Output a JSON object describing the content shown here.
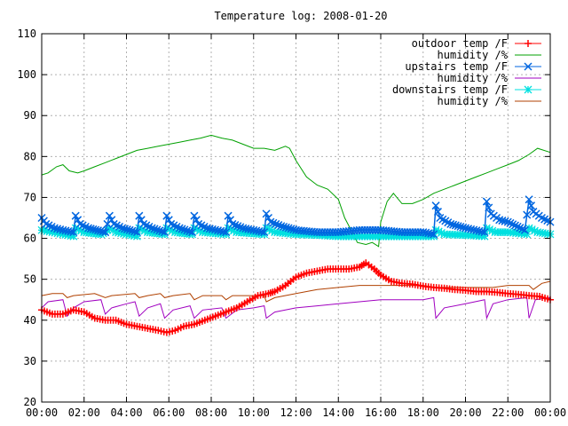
{
  "chart_data": {
    "type": "line",
    "title": "Temperature log: 2008-01-20",
    "xlabel": "",
    "ylabel": "",
    "xlim": [
      0,
      24
    ],
    "ylim": [
      20,
      110
    ],
    "x_ticks": [
      "00:00",
      "02:00",
      "04:00",
      "06:00",
      "08:00",
      "10:00",
      "12:00",
      "14:00",
      "16:00",
      "18:00",
      "20:00",
      "22:00",
      "00:00"
    ],
    "y_ticks": [
      20,
      30,
      40,
      50,
      60,
      70,
      80,
      90,
      100,
      110
    ],
    "grid": true,
    "legend_position": "top-right",
    "series": [
      {
        "name": "outdoor temp /F",
        "color": "#ff0000",
        "marker": "plus",
        "points": [
          [
            0,
            42.5
          ],
          [
            0.5,
            41.5
          ],
          [
            1,
            41.5
          ],
          [
            1.5,
            42.5
          ],
          [
            2,
            42
          ],
          [
            2.5,
            40.5
          ],
          [
            3,
            40
          ],
          [
            3.5,
            40
          ],
          [
            4,
            39
          ],
          [
            4.5,
            38.5
          ],
          [
            5,
            38
          ],
          [
            5.5,
            37.5
          ],
          [
            5.9,
            37
          ],
          [
            6.3,
            37.5
          ],
          [
            6.7,
            38.5
          ],
          [
            7.2,
            39
          ],
          [
            7.7,
            40
          ],
          [
            8.2,
            41
          ],
          [
            8.7,
            42
          ],
          [
            9.2,
            43
          ],
          [
            9.7,
            44.5
          ],
          [
            10.2,
            46
          ],
          [
            10.7,
            46.5
          ],
          [
            11,
            47
          ],
          [
            11.5,
            48.5
          ],
          [
            12,
            50.5
          ],
          [
            12.5,
            51.5
          ],
          [
            13,
            52
          ],
          [
            13.5,
            52.5
          ],
          [
            14,
            52.5
          ],
          [
            14.5,
            52.5
          ],
          [
            15,
            53
          ],
          [
            15.3,
            54
          ],
          [
            15.7,
            52.5
          ],
          [
            16,
            51
          ],
          [
            16.5,
            49.5
          ],
          [
            17,
            49
          ],
          [
            17.5,
            48.8
          ],
          [
            18,
            48.3
          ],
          [
            18.5,
            48
          ],
          [
            19,
            47.8
          ],
          [
            19.5,
            47.5
          ],
          [
            20,
            47.3
          ],
          [
            20.5,
            47
          ],
          [
            21,
            47
          ],
          [
            21.5,
            46.8
          ],
          [
            22,
            46.5
          ],
          [
            22.5,
            46.3
          ],
          [
            23,
            46
          ],
          [
            23.5,
            45.8
          ],
          [
            24,
            45
          ]
        ]
      },
      {
        "name": "humidity /%",
        "color": "#00a000",
        "marker": "none",
        "points": [
          [
            0,
            75.5
          ],
          [
            0.3,
            76
          ],
          [
            0.7,
            77.5
          ],
          [
            1,
            78
          ],
          [
            1.3,
            76.5
          ],
          [
            1.7,
            76
          ],
          [
            2,
            76.5
          ],
          [
            2.5,
            77.5
          ],
          [
            3,
            78.5
          ],
          [
            3.5,
            79.5
          ],
          [
            4,
            80.5
          ],
          [
            4.5,
            81.5
          ],
          [
            5,
            82
          ],
          [
            5.5,
            82.5
          ],
          [
            6,
            83
          ],
          [
            6.5,
            83.5
          ],
          [
            7,
            84
          ],
          [
            7.5,
            84.5
          ],
          [
            8,
            85.2
          ],
          [
            8.5,
            84.5
          ],
          [
            9,
            84
          ],
          [
            9.5,
            83
          ],
          [
            10,
            82
          ],
          [
            10.5,
            82
          ],
          [
            11,
            81.5
          ],
          [
            11.5,
            82.5
          ],
          [
            11.7,
            82
          ],
          [
            12,
            79
          ],
          [
            12.5,
            75
          ],
          [
            13,
            73
          ],
          [
            13.5,
            72
          ],
          [
            14,
            69.5
          ],
          [
            14.3,
            65
          ],
          [
            14.6,
            62
          ],
          [
            14.9,
            59
          ],
          [
            15.3,
            58.5
          ],
          [
            15.6,
            59
          ],
          [
            15.9,
            58
          ],
          [
            16,
            64
          ],
          [
            16.3,
            69
          ],
          [
            16.6,
            71
          ],
          [
            17,
            68.5
          ],
          [
            17.5,
            68.5
          ],
          [
            18,
            69.5
          ],
          [
            18.5,
            71
          ],
          [
            19,
            72
          ],
          [
            19.5,
            73
          ],
          [
            20,
            74
          ],
          [
            20.5,
            75
          ],
          [
            21,
            76
          ],
          [
            21.5,
            77
          ],
          [
            22,
            78
          ],
          [
            22.5,
            79
          ],
          [
            23,
            80.5
          ],
          [
            23.4,
            82
          ],
          [
            24,
            81
          ]
        ]
      },
      {
        "name": "upstairs temp /F",
        "color": "#0066e0",
        "marker": "cross",
        "points": [
          [
            0,
            65
          ],
          [
            0.2,
            63.5
          ],
          [
            0.6,
            62.5
          ],
          [
            1,
            62
          ],
          [
            1.5,
            61.5
          ],
          [
            1.6,
            65.5
          ],
          [
            1.8,
            63.5
          ],
          [
            2.2,
            62.5
          ],
          [
            3,
            61.5
          ],
          [
            3.2,
            65.5
          ],
          [
            3.4,
            63.5
          ],
          [
            3.8,
            62.5
          ],
          [
            4.5,
            61.5
          ],
          [
            4.6,
            65.5
          ],
          [
            4.8,
            63.5
          ],
          [
            5.2,
            62.5
          ],
          [
            5.8,
            61.5
          ],
          [
            5.9,
            65.5
          ],
          [
            6.1,
            63.5
          ],
          [
            6.5,
            62.5
          ],
          [
            7.1,
            61.5
          ],
          [
            7.2,
            65.5
          ],
          [
            7.4,
            63.5
          ],
          [
            7.8,
            62.5
          ],
          [
            8.7,
            61.5
          ],
          [
            8.8,
            65.5
          ],
          [
            9,
            63.5
          ],
          [
            9.5,
            62.5
          ],
          [
            10.5,
            61.5
          ],
          [
            10.6,
            66
          ],
          [
            10.8,
            64
          ],
          [
            11.3,
            63
          ],
          [
            12,
            62
          ],
          [
            13,
            61.5
          ],
          [
            14,
            61.5
          ],
          [
            15,
            62
          ],
          [
            16,
            62
          ],
          [
            17,
            61.5
          ],
          [
            18,
            61.5
          ],
          [
            18.5,
            61
          ],
          [
            18.6,
            68
          ],
          [
            18.8,
            65
          ],
          [
            19.3,
            63.5
          ],
          [
            20,
            62.5
          ],
          [
            20.9,
            61.5
          ],
          [
            21,
            69
          ],
          [
            21.2,
            66
          ],
          [
            21.6,
            64.5
          ],
          [
            22,
            64
          ],
          [
            22.8,
            62
          ],
          [
            23,
            69.5
          ],
          [
            23.2,
            66.5
          ],
          [
            23.6,
            65
          ],
          [
            24,
            64
          ]
        ]
      },
      {
        "name": "humidity /%",
        "color": "#a000c0",
        "marker": "none",
        "points": [
          [
            0,
            43
          ],
          [
            0.3,
            44.5
          ],
          [
            1,
            45
          ],
          [
            1.2,
            41
          ],
          [
            1.5,
            43
          ],
          [
            2,
            44.5
          ],
          [
            2.8,
            45
          ],
          [
            3,
            41.5
          ],
          [
            3.3,
            43
          ],
          [
            4,
            44
          ],
          [
            4.4,
            44.5
          ],
          [
            4.6,
            41
          ],
          [
            5,
            43
          ],
          [
            5.6,
            44
          ],
          [
            5.8,
            40.5
          ],
          [
            6.2,
            42.5
          ],
          [
            7,
            43.5
          ],
          [
            7.2,
            40.5
          ],
          [
            7.6,
            42.5
          ],
          [
            8.5,
            43
          ],
          [
            8.7,
            40.5
          ],
          [
            9.2,
            42.5
          ],
          [
            10,
            43
          ],
          [
            10.5,
            43.5
          ],
          [
            10.6,
            40.5
          ],
          [
            11,
            42
          ],
          [
            12,
            43
          ],
          [
            13,
            43.5
          ],
          [
            14,
            44
          ],
          [
            15,
            44.5
          ],
          [
            16,
            45
          ],
          [
            17,
            45
          ],
          [
            18,
            45
          ],
          [
            18.5,
            45.5
          ],
          [
            18.6,
            40.5
          ],
          [
            19,
            43
          ],
          [
            20,
            44
          ],
          [
            20.9,
            45
          ],
          [
            21,
            40.5
          ],
          [
            21.3,
            44
          ],
          [
            22,
            45
          ],
          [
            22.9,
            45.5
          ],
          [
            23,
            40.5
          ],
          [
            23.3,
            45
          ],
          [
            24,
            45.5
          ]
        ]
      },
      {
        "name": "downstairs temp /F",
        "color": "#00e0e0",
        "marker": "star",
        "points": [
          [
            0,
            62
          ],
          [
            0.5,
            61.5
          ],
          [
            1,
            61
          ],
          [
            1.5,
            60.5
          ],
          [
            1.6,
            62.5
          ],
          [
            2,
            61.5
          ],
          [
            2.8,
            61
          ],
          [
            3,
            61.5
          ],
          [
            3.2,
            62.5
          ],
          [
            3.5,
            61.5
          ],
          [
            4.5,
            60.5
          ],
          [
            4.6,
            62.5
          ],
          [
            5,
            61.5
          ],
          [
            5.8,
            61
          ],
          [
            5.9,
            62.5
          ],
          [
            6.3,
            61.5
          ],
          [
            7.1,
            61
          ],
          [
            7.2,
            62.5
          ],
          [
            7.6,
            61.5
          ],
          [
            8.7,
            61
          ],
          [
            8.8,
            62.5
          ],
          [
            9.2,
            61.5
          ],
          [
            10.5,
            61
          ],
          [
            10.6,
            62.5
          ],
          [
            11,
            61.5
          ],
          [
            12,
            61
          ],
          [
            13,
            60.8
          ],
          [
            14,
            60.5
          ],
          [
            15,
            60.5
          ],
          [
            16,
            60.5
          ],
          [
            17,
            60.5
          ],
          [
            18,
            60.5
          ],
          [
            18.5,
            60.5
          ],
          [
            18.6,
            62
          ],
          [
            19,
            61
          ],
          [
            20,
            60.8
          ],
          [
            20.9,
            60.5
          ],
          [
            21,
            62.5
          ],
          [
            21.4,
            61.5
          ],
          [
            22,
            61.5
          ],
          [
            22.9,
            61
          ],
          [
            23,
            62.5
          ],
          [
            23.4,
            61.5
          ],
          [
            24,
            61
          ]
        ]
      },
      {
        "name": "humidity /%",
        "color": "#b04000",
        "marker": "none",
        "points": [
          [
            0,
            46
          ],
          [
            0.5,
            46.5
          ],
          [
            1,
            46.5
          ],
          [
            1.2,
            45.5
          ],
          [
            1.5,
            46
          ],
          [
            2.5,
            46.5
          ],
          [
            3,
            45.5
          ],
          [
            3.3,
            46
          ],
          [
            4.4,
            46.5
          ],
          [
            4.6,
            45.5
          ],
          [
            5,
            46
          ],
          [
            5.6,
            46.5
          ],
          [
            5.8,
            45.5
          ],
          [
            6.2,
            46
          ],
          [
            7,
            46.5
          ],
          [
            7.2,
            45
          ],
          [
            7.6,
            46
          ],
          [
            8.5,
            46
          ],
          [
            8.7,
            45
          ],
          [
            9,
            46
          ],
          [
            10,
            46
          ],
          [
            10.5,
            46
          ],
          [
            10.6,
            44.5
          ],
          [
            11,
            45.5
          ],
          [
            12,
            46.5
          ],
          [
            13,
            47.5
          ],
          [
            14,
            48
          ],
          [
            15,
            48.5
          ],
          [
            16,
            48.5
          ],
          [
            17,
            48.5
          ],
          [
            18,
            48.5
          ],
          [
            18.6,
            48
          ],
          [
            19,
            48
          ],
          [
            20,
            48
          ],
          [
            20.9,
            48
          ],
          [
            21.3,
            48
          ],
          [
            22,
            48.5
          ],
          [
            23,
            48.5
          ],
          [
            23.2,
            47.5
          ],
          [
            23.6,
            49
          ],
          [
            24,
            49.5
          ]
        ]
      }
    ]
  }
}
